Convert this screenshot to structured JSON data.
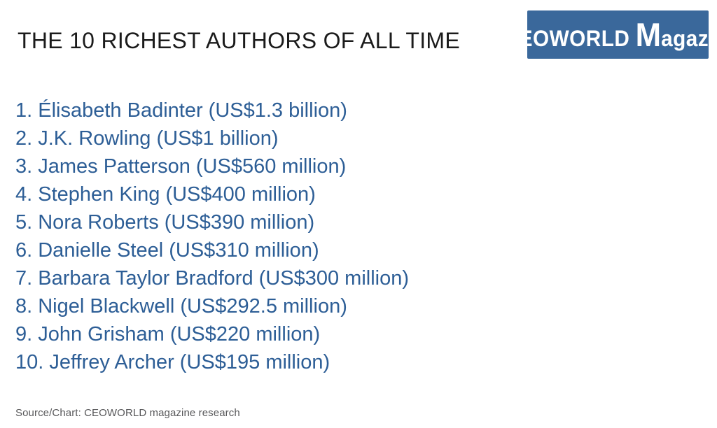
{
  "header": {
    "title": "THE 10 RICHEST AUTHORS OF ALL TIME"
  },
  "logo": {
    "word1_initial": "C",
    "word1_rest": "EOWORLD",
    "word2_initial": "M",
    "word2_rest": "agazine",
    "full_text": "CEOWORLD Magazine",
    "background_color": "#3A689B",
    "text_color": "#FFFFFF"
  },
  "list": {
    "items": [
      {
        "rank": "1.",
        "name": "Élisabeth Badinter",
        "net_worth": "US$1.3 billion",
        "display": "1. Élisabeth Badinter (US$1.3 billion)"
      },
      {
        "rank": "2.",
        "name": "J.K. Rowling",
        "net_worth": "US$1 billion",
        "display": "2. J.K. Rowling (US$1 billion)"
      },
      {
        "rank": "3.",
        "name": "James Patterson",
        "net_worth": "US$560 million",
        "display": "3. James Patterson (US$560 million)"
      },
      {
        "rank": "4.",
        "name": "Stephen King",
        "net_worth": "US$400 million",
        "display": "4. Stephen King (US$400 million)"
      },
      {
        "rank": "5.",
        "name": "Nora Roberts",
        "net_worth": "US$390 million",
        "display": "5. Nora Roberts (US$390 million)"
      },
      {
        "rank": "6.",
        "name": "Danielle Steel",
        "net_worth": "US$310 million",
        "display": "6. Danielle Steel (US$310 million)"
      },
      {
        "rank": "7.",
        "name": "Barbara Taylor Bradford",
        "net_worth": "US$300 million",
        "display": "7. Barbara Taylor Bradford (US$300 million)"
      },
      {
        "rank": "8.",
        "name": "Nigel Blackwell",
        "net_worth": "US$292.5 million",
        "display": "8. Nigel Blackwell (US$292.5 million)"
      },
      {
        "rank": "9.",
        "name": "John Grisham",
        "net_worth": "US$220 million",
        "display": "9. John Grisham (US$220 million)"
      },
      {
        "rank": "10.",
        "name": "Jeffrey Archer",
        "net_worth": "US$195 million",
        "display": "10. Jeffrey Archer (US$195 million)"
      }
    ],
    "text_color": "#2D5E96"
  },
  "footer": {
    "source": "Source/Chart: CEOWORLD magazine research"
  },
  "chart_data": {
    "type": "table",
    "title": "THE 10 RICHEST AUTHORS OF ALL TIME",
    "categories": [
      "Élisabeth Badinter",
      "J.K. Rowling",
      "James Patterson",
      "Stephen King",
      "Nora Roberts",
      "Danielle Steel",
      "Barbara Taylor Bradford",
      "Nigel Blackwell",
      "John Grisham",
      "Jeffrey Archer"
    ],
    "values_usd_millions": [
      1300,
      1000,
      560,
      400,
      390,
      310,
      300,
      292.5,
      220,
      195
    ],
    "value_labels": [
      "US$1.3 billion",
      "US$1 billion",
      "US$560 million",
      "US$400 million",
      "US$390 million",
      "US$310 million",
      "US$300 million",
      "US$292.5 million",
      "US$220 million",
      "US$195 million"
    ],
    "source": "Source/Chart: CEOWORLD magazine research"
  }
}
